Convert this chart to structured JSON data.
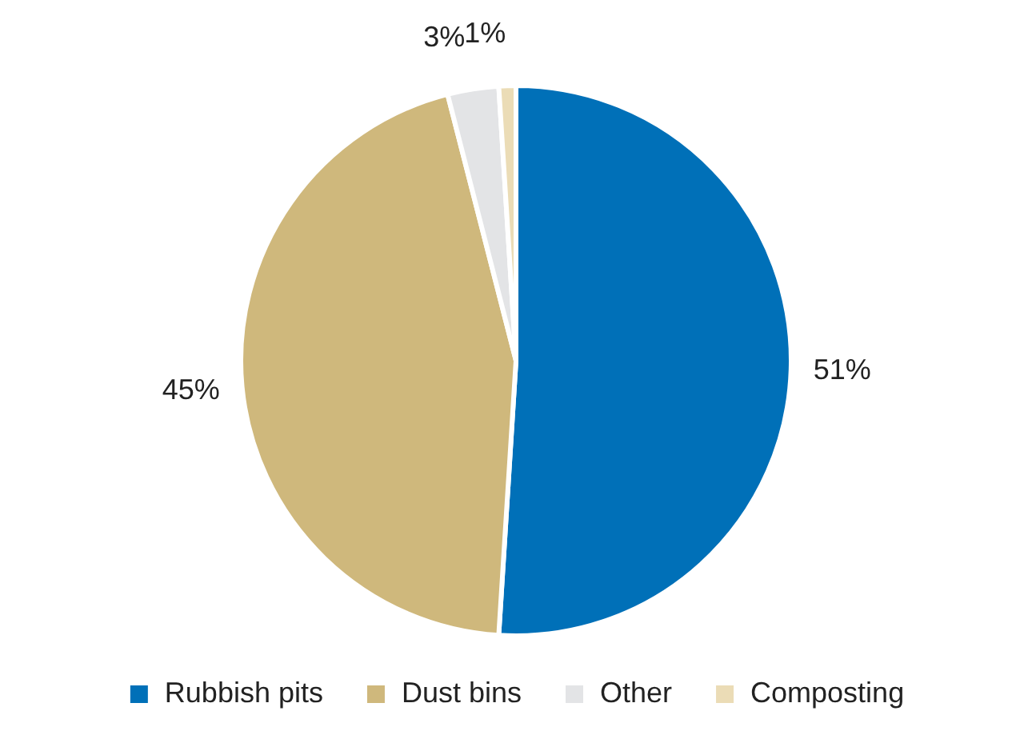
{
  "chart_data": {
    "type": "pie",
    "categories": [
      "Rubbish pits",
      "Dust bins",
      "Other",
      "Composting"
    ],
    "values": [
      51,
      45,
      3,
      1
    ],
    "colors": [
      "#0070b8",
      "#cfb87c",
      "#e3e4e6",
      "#ebdcb6"
    ],
    "value_labels": [
      "51%",
      "45%",
      "3%",
      "1%"
    ],
    "legend": "bottom"
  }
}
